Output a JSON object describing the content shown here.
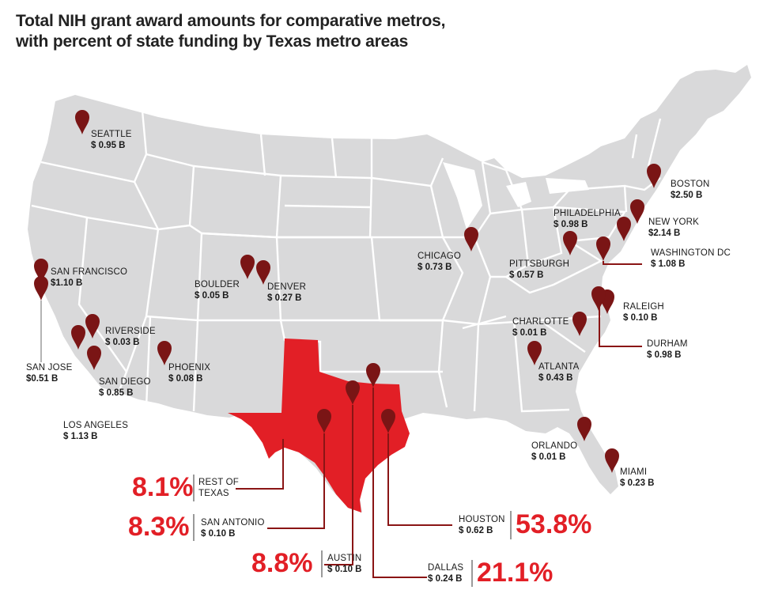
{
  "title": {
    "line1": "Total NIH grant award amounts for comparative metros,",
    "line2": "with percent of state funding by Texas metro areas"
  },
  "colors": {
    "map": "#d9d9da",
    "state_border": "#ffffff",
    "texas": "#e21f26",
    "pin": "#7a1515",
    "leader": "#8a1515",
    "percent": "#e21f26"
  },
  "metros": {
    "seattle": {
      "name": "SEATTLE",
      "value": "$ 0.95 B"
    },
    "san_francisco": {
      "name": "SAN FRANCISCO",
      "value": "$1.10 B"
    },
    "san_jose": {
      "name": "SAN JOSE",
      "value": "$0.51 B"
    },
    "los_angeles": {
      "name": "LOS ANGELES",
      "value": "$ 1.13 B"
    },
    "riverside": {
      "name": "RIVERSIDE",
      "value": "$ 0.03 B"
    },
    "san_diego": {
      "name": "SAN DIEGO",
      "value": "$ 0.85 B"
    },
    "phoenix": {
      "name": "PHOENIX",
      "value": "$ 0.08 B"
    },
    "boulder": {
      "name": "BOULDER",
      "value": "$ 0.05 B"
    },
    "denver": {
      "name": "DENVER",
      "value": "$ 0.27 B"
    },
    "chicago": {
      "name": "CHICAGO",
      "value": "$ 0.73 B"
    },
    "pittsburgh": {
      "name": "PITTSBURGH",
      "value": "$ 0.57 B"
    },
    "philadelphia": {
      "name": "PHILADELPHIA",
      "value": "$ 0.98 B"
    },
    "new_york": {
      "name": "NEW YORK",
      "value": "$2.14 B"
    },
    "boston": {
      "name": "BOSTON",
      "value": "$2.50 B"
    },
    "washington_dc": {
      "name": "WASHINGTON DC",
      "value": "$ 1.08 B"
    },
    "raleigh": {
      "name": "RALEIGH",
      "value": "$ 0.10 B"
    },
    "durham": {
      "name": "DURHAM",
      "value": "$ 0.98 B"
    },
    "charlotte": {
      "name": "CHARLOTTE",
      "value": "$ 0.01 B"
    },
    "atlanta": {
      "name": "ATLANTA",
      "value": "$ 0.43 B"
    },
    "orlando": {
      "name": "ORLANDO",
      "value": "$ 0.01 B"
    },
    "miami": {
      "name": "MIAMI",
      "value": "$ 0.23 B"
    },
    "rest_of_texas": {
      "name1": "REST OF",
      "name2": "TEXAS",
      "percent": "8.1%"
    },
    "san_antonio": {
      "name": "SAN ANTONIO",
      "value": "$ 0.10 B",
      "percent": "8.3%"
    },
    "austin": {
      "name": "AUSTIN",
      "value": "$ 0.10 B",
      "percent": "8.8%"
    },
    "dallas": {
      "name": "DALLAS",
      "value": "$ 0.24 B",
      "percent": "21.1%"
    },
    "houston": {
      "name": "HOUSTON",
      "value": "$ 0.62 B",
      "percent": "53.8%"
    }
  },
  "pins": [
    {
      "id": "seattle"
    },
    {
      "id": "san_francisco"
    },
    {
      "id": "san_jose"
    },
    {
      "id": "riverside"
    },
    {
      "id": "los_angeles"
    },
    {
      "id": "san_diego"
    },
    {
      "id": "phoenix"
    },
    {
      "id": "boulder"
    },
    {
      "id": "denver"
    },
    {
      "id": "chicago"
    },
    {
      "id": "pittsburgh"
    },
    {
      "id": "philadelphia"
    },
    {
      "id": "new_york"
    },
    {
      "id": "boston"
    },
    {
      "id": "washington_dc"
    },
    {
      "id": "raleigh"
    },
    {
      "id": "durham"
    },
    {
      "id": "charlotte"
    },
    {
      "id": "atlanta"
    },
    {
      "id": "orlando"
    },
    {
      "id": "miami"
    },
    {
      "id": "san_antonio"
    },
    {
      "id": "austin"
    },
    {
      "id": "dallas"
    },
    {
      "id": "houston"
    }
  ]
}
